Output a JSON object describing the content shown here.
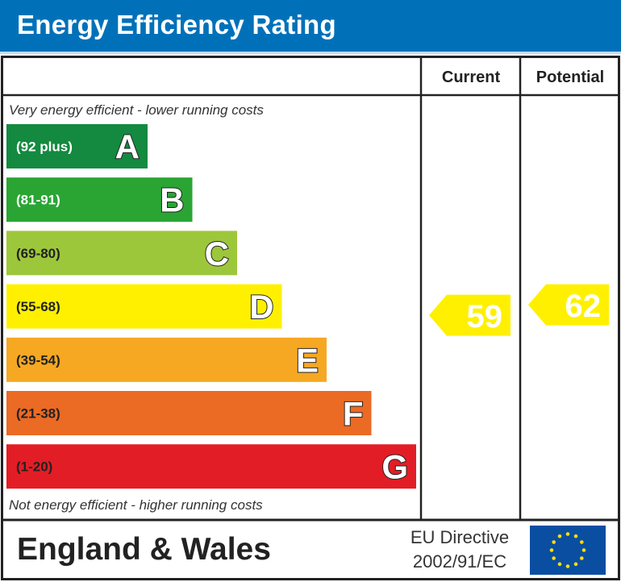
{
  "title": "Energy Efficiency Rating",
  "chart_data": {
    "type": "bar",
    "columns": [
      "Current",
      "Potential"
    ],
    "top_note": "Very energy efficient - lower running costs",
    "bottom_note": "Not energy efficient - higher running costs",
    "bands": [
      {
        "letter": "A",
        "range": "(92 plus)",
        "color": "#138a3f"
      },
      {
        "letter": "B",
        "range": "(81-91)",
        "color": "#2aa534"
      },
      {
        "letter": "C",
        "range": "(69-80)",
        "color": "#9dc73b"
      },
      {
        "letter": "D",
        "range": "(55-68)",
        "color": "#fff000"
      },
      {
        "letter": "E",
        "range": "(39-54)",
        "color": "#f6a823"
      },
      {
        "letter": "F",
        "range": "(21-38)",
        "color": "#eb6a24"
      },
      {
        "letter": "G",
        "range": "(1-20)",
        "color": "#e31d25"
      }
    ],
    "current": {
      "value": 59,
      "band": "D",
      "color": "#fff000"
    },
    "potential": {
      "value": 62,
      "band": "D",
      "color": "#fff000"
    }
  },
  "footer": {
    "region": "England & Wales",
    "directive_line1": "EU Directive",
    "directive_line2": "2002/91/EC",
    "flag_color": "#0a4ea2",
    "star_color": "#ffdd00"
  }
}
